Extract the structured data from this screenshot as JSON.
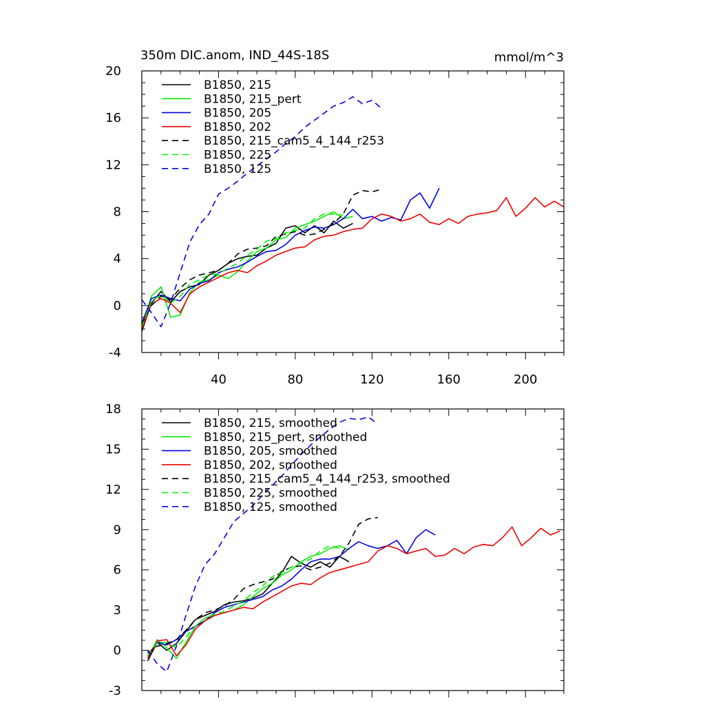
{
  "chart_data": [
    {
      "type": "line",
      "title": "350m DIC.anom, IND_44S-18S",
      "units": "mmol/m^3",
      "xlim": [
        0,
        220
      ],
      "ylim": [
        -4,
        20
      ],
      "xticks": [
        40,
        80,
        120,
        160,
        200
      ],
      "yticks": [
        -4,
        0,
        4,
        8,
        12,
        16,
        20
      ],
      "grid": false,
      "legend": "top-left",
      "series": [
        {
          "name": "B1850, 215",
          "color": "#000000",
          "dash": "solid",
          "x": [
            0,
            5,
            10,
            15,
            20,
            25,
            30,
            35,
            40,
            45,
            50,
            55,
            60,
            65,
            70,
            75,
            80,
            85,
            90,
            95,
            100,
            105,
            110
          ],
          "y": [
            -2.2,
            0.2,
            1.2,
            0.3,
            1.2,
            1.6,
            1.8,
            2.6,
            3.0,
            3.6,
            4.0,
            4.2,
            4.3,
            4.9,
            5.3,
            6.6,
            6.8,
            6.2,
            6.8,
            6.2,
            7.2,
            6.6,
            7.0
          ]
        },
        {
          "name": "B1850, 215_pert",
          "color": "#00ee00",
          "dash": "solid",
          "x": [
            0,
            5,
            10,
            15,
            20,
            25,
            30,
            35,
            40,
            45,
            50,
            55,
            60,
            65,
            70,
            75,
            80,
            85,
            90,
            95,
            100,
            105,
            110
          ],
          "y": [
            -2.0,
            0.8,
            1.6,
            -1.0,
            -0.8,
            1.1,
            2.0,
            2.2,
            2.6,
            2.3,
            2.9,
            3.8,
            4.6,
            4.9,
            5.6,
            5.8,
            6.6,
            6.9,
            7.2,
            7.6,
            8.0,
            7.4,
            7.6
          ]
        },
        {
          "name": "B1850, 205",
          "color": "#0000dd",
          "dash": "solid",
          "x": [
            0,
            5,
            10,
            15,
            20,
            25,
            30,
            35,
            40,
            45,
            50,
            55,
            60,
            65,
            70,
            75,
            80,
            85,
            90,
            95,
            100,
            105,
            110,
            115,
            120,
            125,
            130,
            135,
            140,
            145,
            150,
            155
          ],
          "y": [
            -1.5,
            0.6,
            0.9,
            0.6,
            0.4,
            1.4,
            1.9,
            2.1,
            2.8,
            3.1,
            3.3,
            3.7,
            4.2,
            4.6,
            4.7,
            5.2,
            6.0,
            6.4,
            6.7,
            6.6,
            6.9,
            7.4,
            8.2,
            7.4,
            7.6,
            7.2,
            7.5,
            7.3,
            9.0,
            9.6,
            8.3,
            10.0
          ]
        },
        {
          "name": "B1850, 202",
          "color": "#ee0000",
          "dash": "solid",
          "x": [
            0,
            5,
            10,
            15,
            20,
            25,
            30,
            35,
            40,
            45,
            50,
            55,
            60,
            65,
            70,
            75,
            80,
            85,
            90,
            95,
            100,
            105,
            110,
            115,
            120,
            125,
            130,
            135,
            140,
            145,
            150,
            155,
            160,
            165,
            170,
            175,
            180,
            185,
            190,
            195,
            200,
            205,
            210,
            215,
            220
          ],
          "y": [
            -2.0,
            0.1,
            0.6,
            0.2,
            -0.6,
            1.0,
            1.6,
            2.0,
            2.4,
            2.8,
            3.0,
            2.8,
            3.4,
            3.8,
            4.3,
            4.6,
            4.9,
            5.0,
            5.6,
            5.9,
            6.0,
            6.3,
            6.5,
            6.6,
            7.4,
            7.8,
            7.6,
            7.2,
            7.4,
            7.8,
            7.1,
            6.9,
            7.4,
            7.0,
            7.6,
            7.8,
            7.9,
            8.1,
            9.2,
            7.6,
            8.3,
            9.2,
            8.4,
            8.9,
            8.4
          ]
        },
        {
          "name": "B1850, 215_cam5_4_144_r253",
          "color": "#000000",
          "dash": "dashed",
          "x": [
            0,
            5,
            10,
            15,
            20,
            25,
            30,
            35,
            40,
            45,
            50,
            55,
            60,
            65,
            70,
            75,
            80,
            85,
            90,
            95,
            100,
            105,
            110,
            115,
            120,
            125
          ],
          "y": [
            -1.6,
            0.0,
            0.8,
            0.5,
            1.5,
            2.2,
            2.6,
            2.8,
            3.0,
            3.6,
            4.4,
            4.8,
            4.9,
            5.1,
            5.9,
            6.1,
            6.3,
            6.0,
            6.1,
            6.5,
            7.0,
            7.8,
            9.4,
            9.8,
            9.7,
            9.9
          ]
        },
        {
          "name": "B1850, 225",
          "color": "#00ee00",
          "dash": "dashed",
          "x": [
            0,
            5,
            10,
            15,
            20,
            25,
            30,
            35,
            40,
            45,
            50,
            55,
            60,
            65,
            70,
            75,
            80,
            85,
            90,
            95,
            100,
            105
          ],
          "y": [
            -1.8,
            0.4,
            0.9,
            0.2,
            0.8,
            1.8,
            2.2,
            2.6,
            2.7,
            3.2,
            3.6,
            4.3,
            4.8,
            5.5,
            5.7,
            6.2,
            6.4,
            6.6,
            7.4,
            7.8,
            7.8,
            7.7
          ]
        },
        {
          "name": "B1850, 125",
          "color": "#0000dd",
          "dash": "dashed",
          "x": [
            0,
            5,
            10,
            15,
            20,
            25,
            30,
            35,
            40,
            45,
            50,
            55,
            60,
            65,
            70,
            75,
            80,
            85,
            90,
            95,
            100,
            105,
            110,
            115,
            120,
            125
          ],
          "y": [
            0.5,
            -0.6,
            -1.8,
            0.2,
            2.8,
            5.4,
            6.9,
            7.8,
            9.5,
            10.0,
            10.6,
            11.3,
            11.9,
            12.5,
            13.1,
            13.8,
            14.4,
            15.2,
            15.8,
            16.4,
            17.0,
            17.3,
            17.8,
            17.2,
            17.5,
            16.8
          ]
        }
      ]
    },
    {
      "type": "line",
      "xlim": [
        0,
        220
      ],
      "ylim": [
        -3,
        18
      ],
      "xticks": [
        40,
        80,
        120,
        160,
        200
      ],
      "yticks": [
        -3,
        0,
        3,
        6,
        9,
        12,
        15,
        18
      ],
      "grid": false,
      "legend": "top-left",
      "series": [
        {
          "name": "B1850, 215, smoothed",
          "color": "#000000",
          "dash": "solid",
          "x": [
            3,
            8,
            13,
            18,
            23,
            28,
            33,
            38,
            43,
            48,
            53,
            58,
            63,
            68,
            73,
            78,
            83,
            88,
            93,
            98,
            103,
            108
          ],
          "y": [
            -0.8,
            0.6,
            0.0,
            0.5,
            1.4,
            2.3,
            2.6,
            2.9,
            3.4,
            3.6,
            3.7,
            3.9,
            4.2,
            5.0,
            5.8,
            7.0,
            6.5,
            6.2,
            6.6,
            6.2,
            7.0,
            6.6
          ]
        },
        {
          "name": "B1850, 215_pert, smoothed",
          "color": "#00ee00",
          "dash": "solid",
          "x": [
            3,
            8,
            13,
            18,
            23,
            28,
            33,
            38,
            43,
            48,
            53,
            58,
            63,
            68,
            73,
            78,
            83,
            88,
            93,
            98,
            103,
            108
          ],
          "y": [
            -0.6,
            0.8,
            0.2,
            -0.6,
            0.6,
            1.8,
            2.4,
            2.6,
            2.8,
            3.0,
            3.4,
            4.0,
            4.6,
            5.0,
            5.6,
            6.0,
            6.6,
            7.0,
            7.2,
            7.6,
            7.8,
            7.5
          ]
        },
        {
          "name": "B1850, 205, smoothed",
          "color": "#0000dd",
          "dash": "solid",
          "x": [
            3,
            8,
            13,
            18,
            23,
            28,
            33,
            38,
            43,
            48,
            53,
            58,
            63,
            68,
            73,
            78,
            83,
            88,
            93,
            98,
            103,
            108,
            113,
            118,
            123,
            128,
            133,
            138,
            143,
            148,
            153
          ],
          "y": [
            -0.4,
            0.6,
            0.4,
            0.8,
            1.4,
            1.8,
            2.2,
            2.8,
            3.2,
            3.4,
            3.6,
            3.8,
            4.0,
            4.5,
            4.8,
            5.3,
            6.0,
            6.6,
            6.8,
            6.8,
            7.0,
            7.6,
            8.1,
            7.8,
            7.6,
            7.8,
            8.2,
            7.2,
            8.4,
            9.0,
            8.6
          ]
        },
        {
          "name": "B1850, 202, smoothed",
          "color": "#ee0000",
          "dash": "solid",
          "x": [
            3,
            8,
            13,
            18,
            23,
            28,
            33,
            38,
            43,
            48,
            53,
            58,
            63,
            68,
            73,
            78,
            83,
            88,
            93,
            98,
            103,
            108,
            113,
            118,
            123,
            128,
            133,
            138,
            143,
            148,
            153,
            158,
            163,
            168,
            173,
            178,
            183,
            188,
            193,
            198,
            203,
            208,
            213,
            218
          ],
          "y": [
            -0.6,
            0.7,
            0.8,
            -0.4,
            0.4,
            1.6,
            2.2,
            2.6,
            2.8,
            3.0,
            3.2,
            3.1,
            3.6,
            4.0,
            4.4,
            4.8,
            5.0,
            4.9,
            5.4,
            5.8,
            6.0,
            6.2,
            6.4,
            6.6,
            7.4,
            7.8,
            7.6,
            7.2,
            7.4,
            7.6,
            7.0,
            7.1,
            7.6,
            7.2,
            7.7,
            7.9,
            7.8,
            8.4,
            9.2,
            7.8,
            8.4,
            9.1,
            8.6,
            8.9
          ]
        },
        {
          "name": "B1850, 215_cam5_4_144_r253, smoothed",
          "color": "#000000",
          "dash": "dashed",
          "x": [
            3,
            8,
            13,
            18,
            23,
            28,
            33,
            38,
            43,
            48,
            53,
            58,
            63,
            68,
            73,
            78,
            83,
            88,
            93,
            98,
            103,
            108,
            113,
            118,
            123
          ],
          "y": [
            -0.2,
            0.3,
            0.5,
            0.8,
            1.5,
            2.3,
            2.8,
            3.0,
            3.3,
            3.8,
            4.6,
            4.9,
            5.1,
            5.3,
            5.9,
            6.2,
            6.3,
            6.0,
            6.2,
            6.5,
            7.0,
            8.0,
            9.4,
            9.8,
            9.9
          ]
        },
        {
          "name": "B1850, 225, smoothed",
          "color": "#00ee00",
          "dash": "dashed",
          "x": [
            3,
            8,
            13,
            18,
            23,
            28,
            33,
            38,
            43,
            48,
            53,
            58,
            63,
            68,
            73,
            78,
            83,
            88,
            93,
            98,
            103
          ],
          "y": [
            -0.4,
            0.6,
            0.6,
            0.2,
            1.0,
            1.8,
            2.4,
            2.7,
            2.9,
            3.3,
            3.7,
            4.3,
            4.8,
            5.5,
            5.8,
            6.2,
            6.5,
            6.8,
            7.4,
            7.8,
            7.6
          ]
        },
        {
          "name": "B1850, 125, smoothed",
          "color": "#0000dd",
          "dash": "dashed",
          "x": [
            3,
            8,
            13,
            18,
            23,
            28,
            33,
            38,
            43,
            48,
            53,
            58,
            63,
            68,
            73,
            78,
            83,
            88,
            93,
            98,
            103,
            108,
            113,
            118,
            123
          ],
          "y": [
            0.0,
            -1.0,
            -1.6,
            0.3,
            2.6,
            4.8,
            6.4,
            7.2,
            8.4,
            9.6,
            10.2,
            10.8,
            11.6,
            12.3,
            13.0,
            13.8,
            14.6,
            15.3,
            15.9,
            16.5,
            17.0,
            17.3,
            17.2,
            17.4,
            16.9
          ]
        }
      ]
    }
  ]
}
